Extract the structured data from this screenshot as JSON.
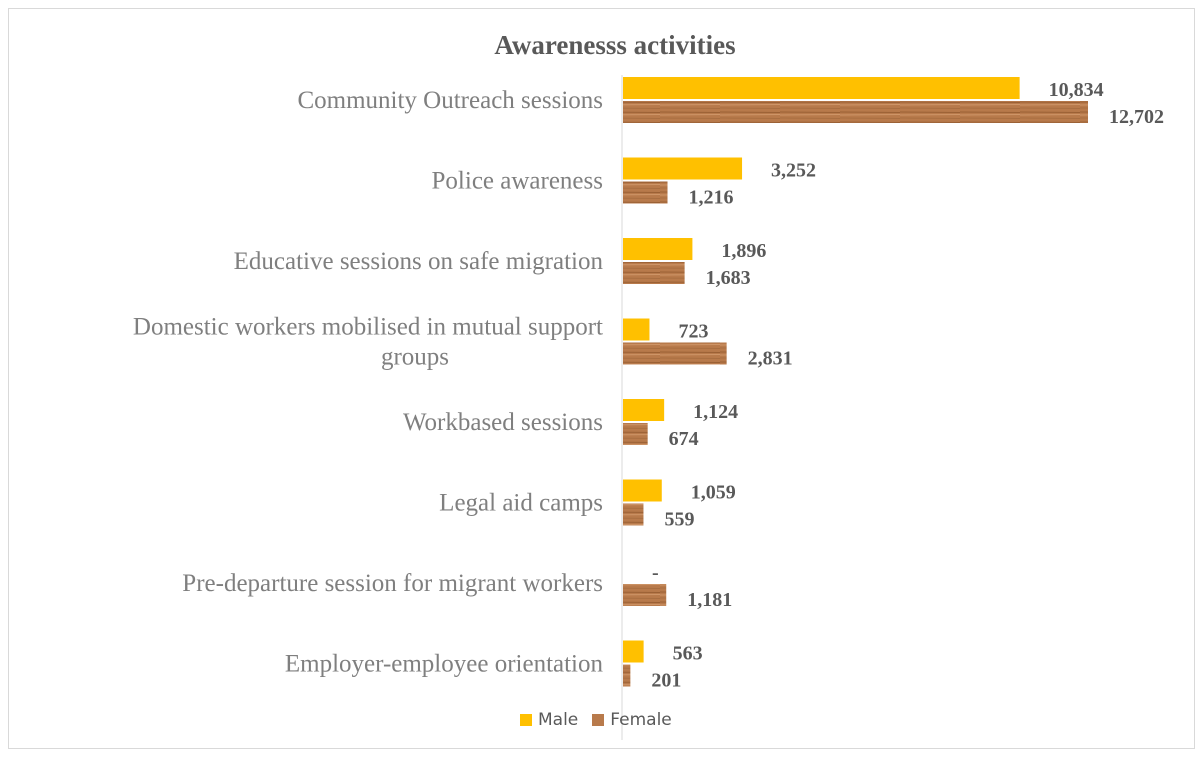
{
  "chart_data": {
    "type": "bar",
    "orientation": "horizontal",
    "title": "Awarenesss activities",
    "categories": [
      "Community Outreach sessions",
      "Police awareness",
      "Educative sessions on safe migration",
      "Domestic workers mobilised in mutual support groups",
      "Workbased sessions",
      "Legal aid camps",
      "Pre-departure session for migrant workers",
      "Employer-employee orientation"
    ],
    "category_lines": [
      [
        "Community Outreach sessions"
      ],
      [
        "Police awareness"
      ],
      [
        "Educative sessions on safe migration"
      ],
      [
        "Domestic workers mobilised in mutual support",
        "groups"
      ],
      [
        "Workbased sessions"
      ],
      [
        "Legal aid camps"
      ],
      [
        "Pre-departure session for migrant workers"
      ],
      [
        "Employer-employee orientation"
      ]
    ],
    "series": [
      {
        "name": "Male",
        "color": "#ffc000",
        "values": [
          10834,
          3252,
          1896,
          723,
          1124,
          1059,
          0,
          563
        ],
        "labels": [
          "10,834",
          "3,252",
          "1,896",
          "723",
          "1,124",
          "1,059",
          "-",
          "563"
        ]
      },
      {
        "name": "Female",
        "color": "#b87a4b",
        "values": [
          12702,
          1216,
          1683,
          2831,
          674,
          559,
          1181,
          201
        ],
        "labels": [
          "12,702",
          "1,216",
          "1,683",
          "2,831",
          "674",
          "559",
          "1,181",
          "201"
        ]
      }
    ],
    "xlim": [
      0,
      12702
    ],
    "grid": false,
    "legend_position": "bottom"
  }
}
